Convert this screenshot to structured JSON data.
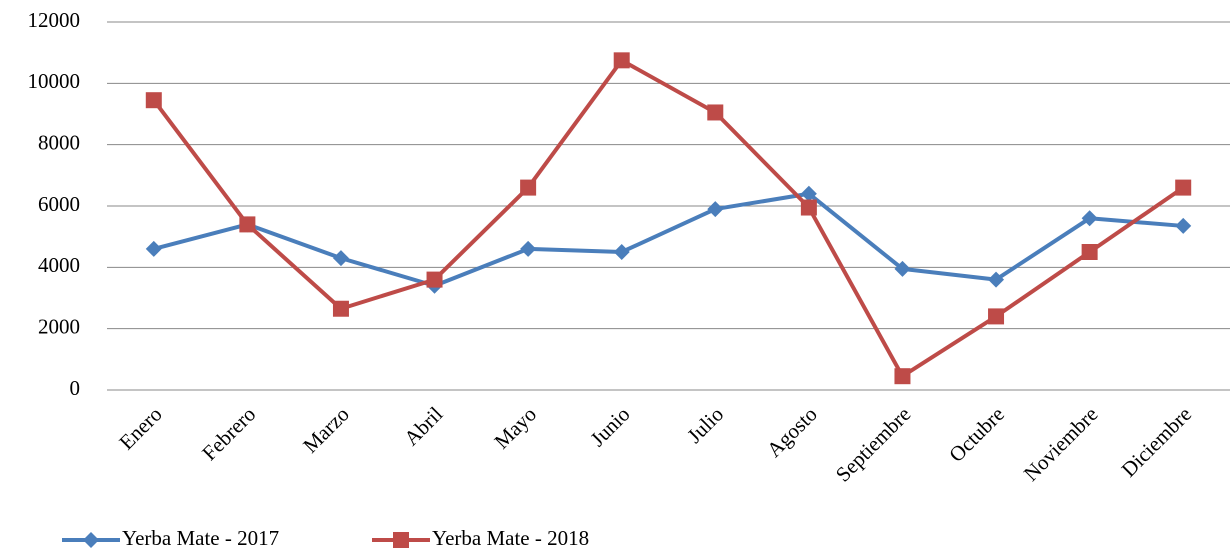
{
  "chart_data": {
    "type": "line",
    "categories": [
      "Enero",
      "Febrero",
      "Marzo",
      "Abril",
      "Mayo",
      "Junio",
      "Julio",
      "Agosto",
      "Septiembre",
      "Octubre",
      "Noviembre",
      "Diciembre"
    ],
    "series": [
      {
        "name": "Yerba Mate - 2017",
        "color": "#4a7ebb",
        "marker": "diamond",
        "values": [
          4600,
          5400,
          4300,
          3400,
          4600,
          4500,
          5900,
          6400,
          3950,
          3600,
          5600,
          5350
        ]
      },
      {
        "name": "Yerba Mate - 2018",
        "color": "#be4b48",
        "marker": "square",
        "values": [
          9450,
          5400,
          2650,
          3600,
          6600,
          10750,
          9050,
          5950,
          450,
          2400,
          4500,
          6600
        ]
      }
    ],
    "ylim": [
      0,
      12000
    ],
    "yticks": [
      0,
      2000,
      4000,
      6000,
      8000,
      10000,
      12000
    ],
    "grid": true,
    "legend": "bottom"
  }
}
